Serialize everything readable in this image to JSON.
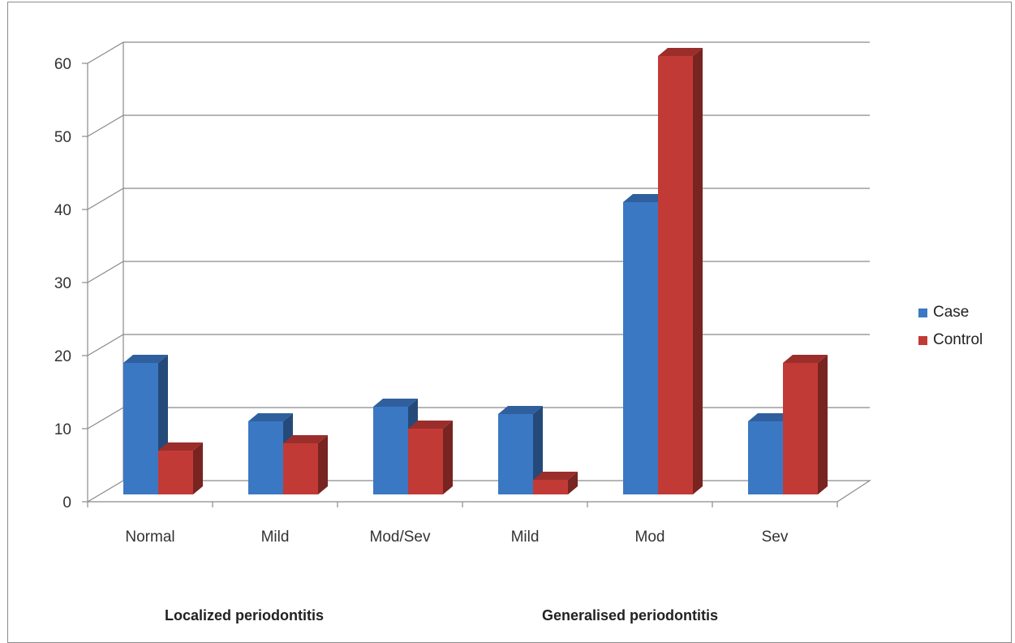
{
  "chart_data": {
    "type": "bar",
    "categories": [
      "Normal",
      "Mild",
      "Mod/Sev",
      "Mild",
      "Mod",
      "Sev"
    ],
    "groups": [
      {
        "label": "Localized periodontitis"
      },
      {
        "label": "Generalised periodontitis"
      }
    ],
    "series": [
      {
        "name": "Case",
        "values": [
          18,
          10,
          12,
          11,
          40,
          10
        ],
        "color": "#3b78c4"
      },
      {
        "name": "Control",
        "values": [
          6,
          7,
          9,
          2,
          60,
          18
        ],
        "color": "#c23a36"
      }
    ],
    "ylim": [
      0,
      60
    ],
    "yticks": [
      0,
      10,
      20,
      30,
      40,
      50,
      60
    ],
    "grid": true,
    "legend_position": "right",
    "style": "3d-clustered-column"
  }
}
